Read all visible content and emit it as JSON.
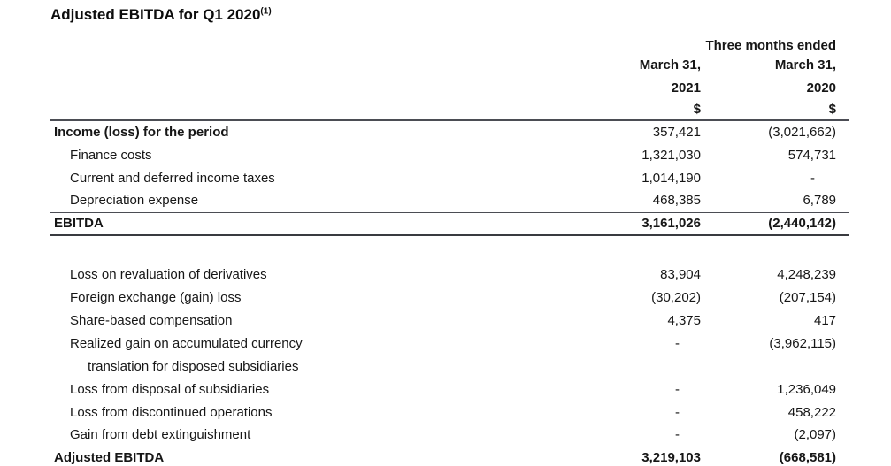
{
  "title": {
    "text": "Adjusted EBITDA for Q1 2020",
    "superscript": "(1)"
  },
  "table": {
    "period_header": "Three months ended",
    "columns": [
      {
        "date": "March 31,",
        "year": "2021",
        "currency": "$"
      },
      {
        "date": "March 31,",
        "year": "2020",
        "currency": "$"
      }
    ],
    "rows": [
      {
        "label": "Income (loss) for the period",
        "v2021": "357,421",
        "v2020": "(3,021,662)",
        "style": "lead-bold"
      },
      {
        "label": "Finance costs",
        "v2021": "1,321,030",
        "v2020": "574,731",
        "style": "indent"
      },
      {
        "label": "Current and deferred income taxes",
        "v2021": "1,014,190",
        "v2020": "-",
        "style": "indent"
      },
      {
        "label": "Depreciation expense",
        "v2021": "468,385",
        "v2020": "6,789",
        "style": "indent",
        "border_bottom": "thin"
      },
      {
        "label": "EBITDA",
        "v2021": "3,161,026",
        "v2020": "(2,440,142)",
        "style": "total",
        "border_bottom": "thick"
      },
      {
        "style": "spacer"
      },
      {
        "label": "Loss on revaluation of derivatives",
        "v2021": "83,904",
        "v2020": "4,248,239",
        "style": "indent"
      },
      {
        "label": "Foreign exchange (gain) loss",
        "v2021": "(30,202)",
        "v2020": "(207,154)",
        "style": "indent"
      },
      {
        "label": "Share-based compensation",
        "v2021": "4,375",
        "v2020": "417",
        "style": "indent"
      },
      {
        "label": "Realized gain on accumulated currency",
        "v2021": "-",
        "v2020": "(3,962,115)",
        "style": "indent"
      },
      {
        "label": "translation for disposed subsidiaries",
        "v2021": "",
        "v2020": "",
        "style": "indent2"
      },
      {
        "label": "Loss from disposal of subsidiaries",
        "v2021": "-",
        "v2020": "1,236,049",
        "style": "indent"
      },
      {
        "label": "Loss from discontinued operations",
        "v2021": "-",
        "v2020": "458,222",
        "style": "indent"
      },
      {
        "label": "Gain from debt extinguishment",
        "v2021": "-",
        "v2020": "(2,097)",
        "style": "indent",
        "border_bottom": "thin"
      },
      {
        "label": "Adjusted EBITDA",
        "v2021": "3,219,103",
        "v2020": "(668,581)",
        "style": "total",
        "border_bottom": "thick"
      }
    ]
  }
}
